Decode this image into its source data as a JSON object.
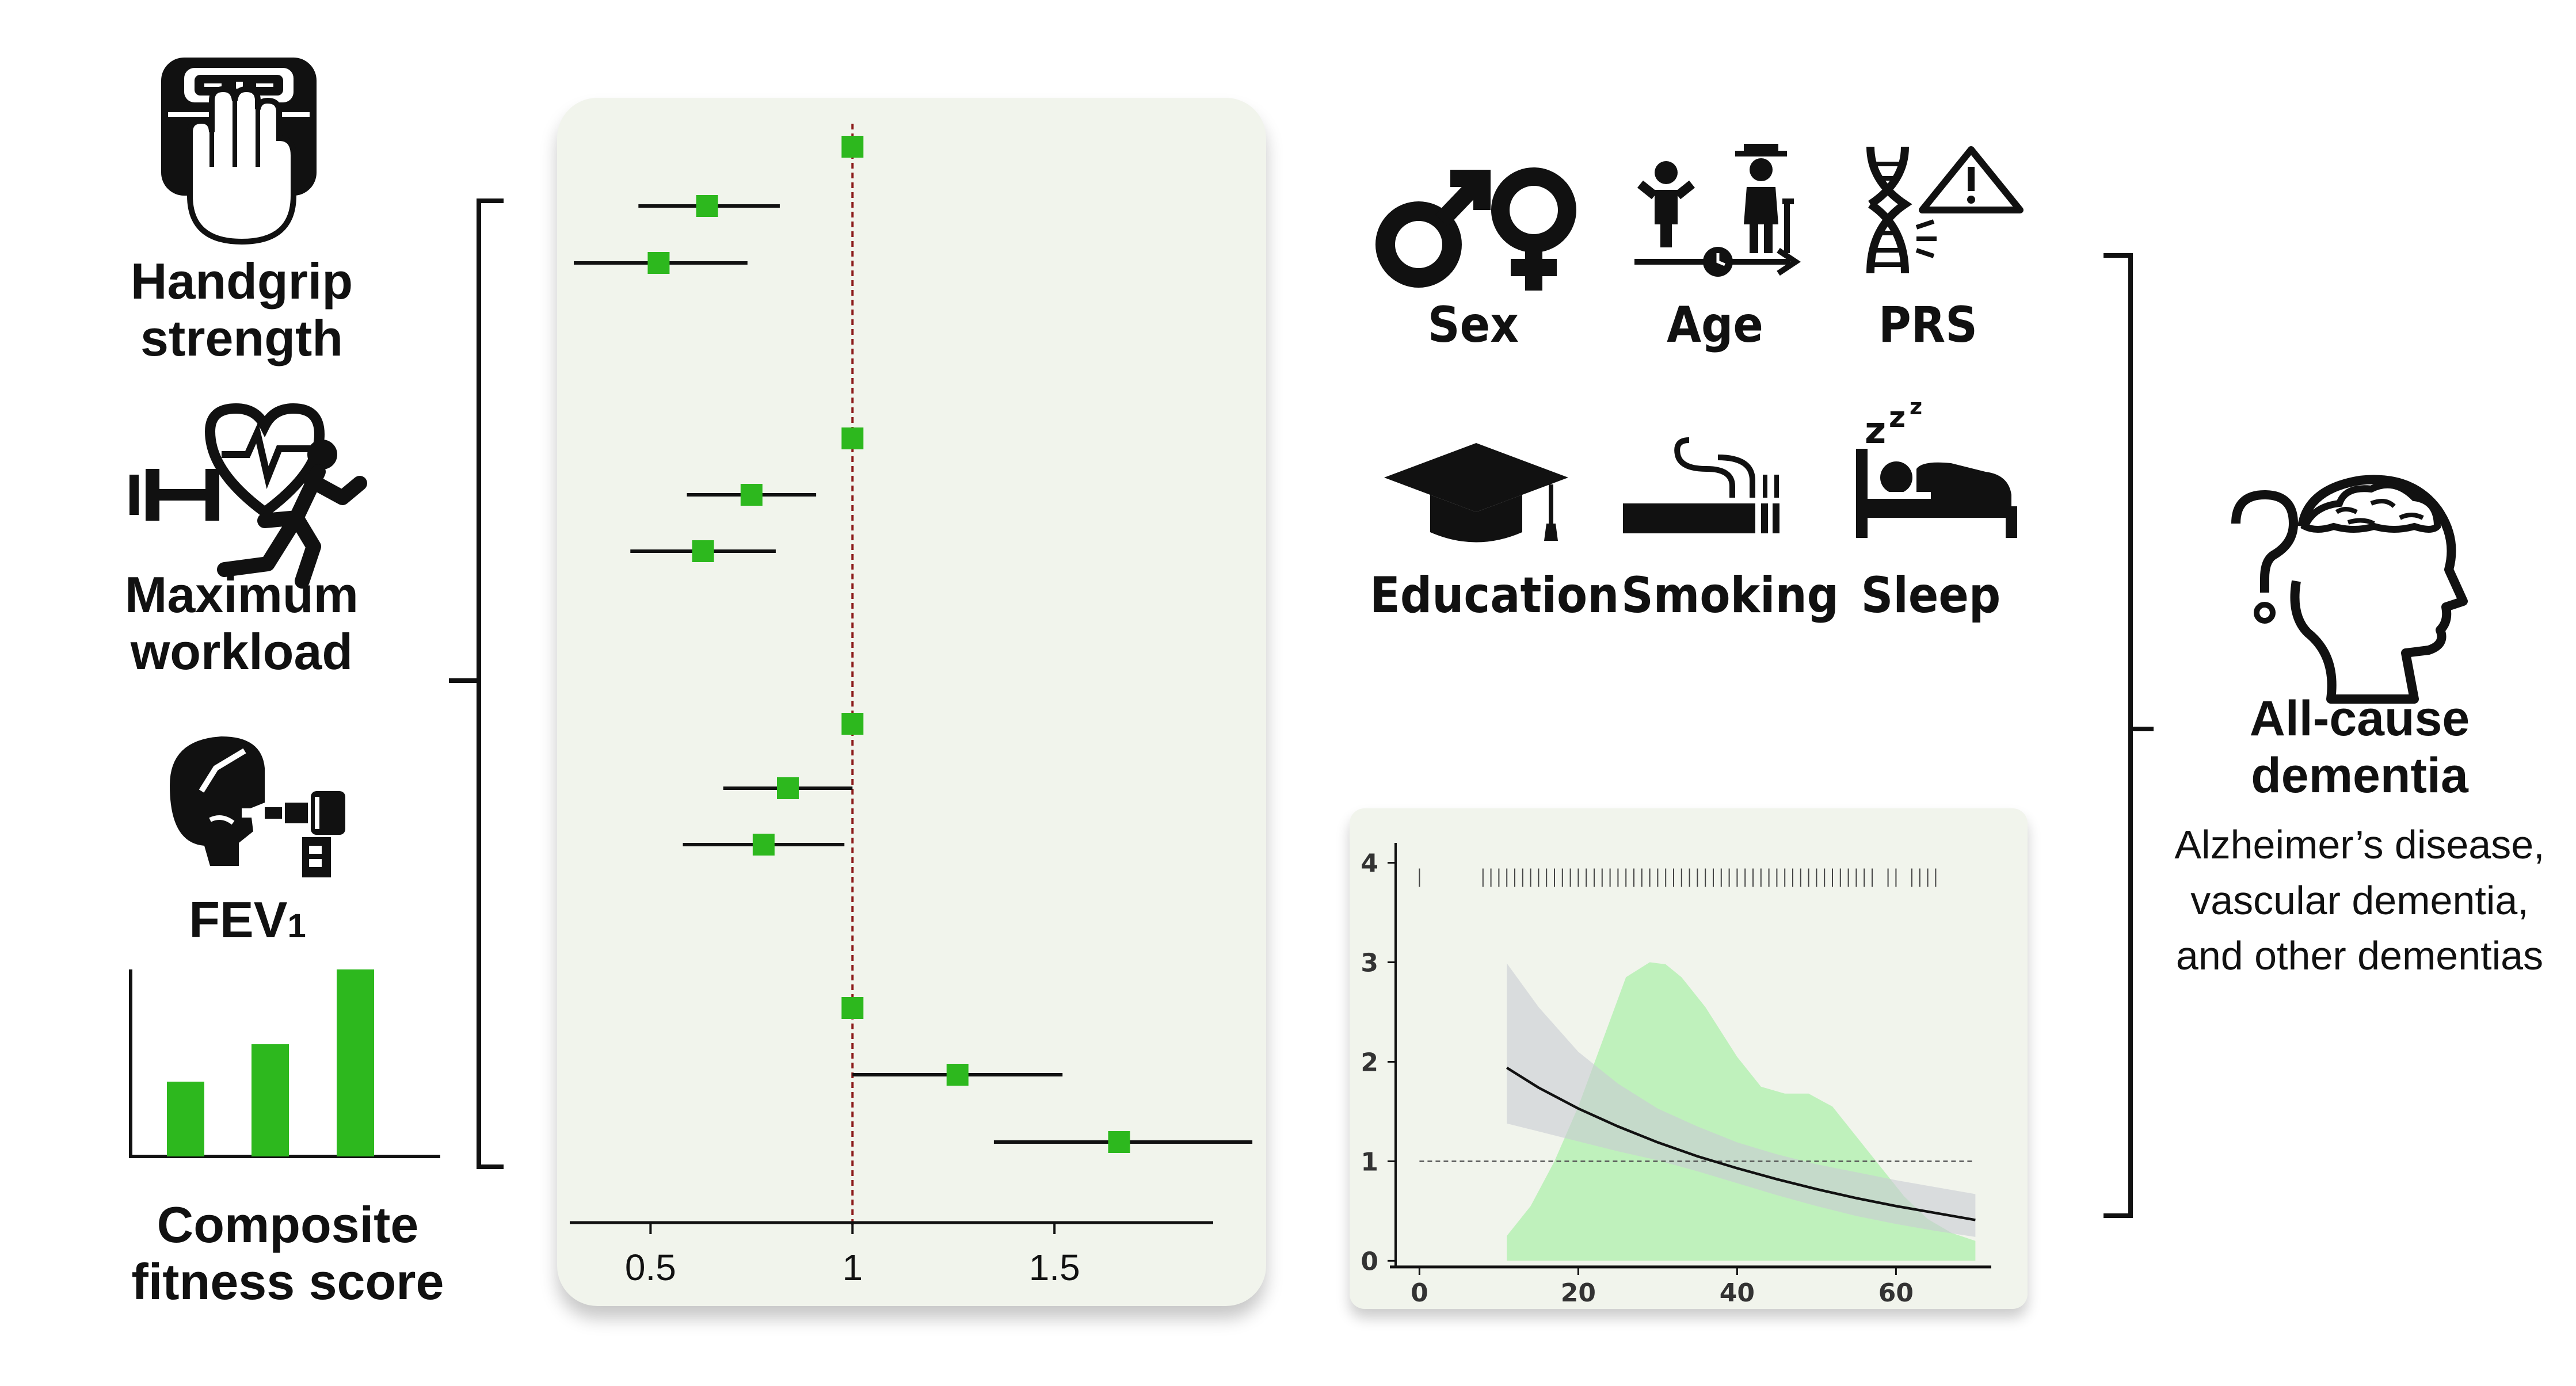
{
  "left_panel": {
    "handgrip_label": "Handgrip\nstrength",
    "workload_label": "Maximum\nworkload",
    "fev_label": "FEV",
    "fev_subscript": "1",
    "composite_label": "Composite\nfitness score",
    "composite_bars": [
      0.4,
      0.6,
      1.0
    ]
  },
  "forest_plot": {
    "x_ticks": [
      "0.5",
      "1",
      "1.5"
    ],
    "x_range": [
      0.3,
      1.95
    ],
    "reference_line": 1,
    "rows": [
      {
        "est": 1.0,
        "lo": 1.0,
        "hi": 1.0
      },
      {
        "est": 0.64,
        "lo": 0.47,
        "hi": 0.82
      },
      {
        "est": 0.52,
        "lo": 0.31,
        "hi": 0.74
      },
      {
        "est": 1.0,
        "lo": 1.0,
        "hi": 1.0
      },
      {
        "est": 0.75,
        "lo": 0.59,
        "hi": 0.91
      },
      {
        "est": 0.63,
        "lo": 0.45,
        "hi": 0.81
      },
      {
        "est": 1.0,
        "lo": 1.0,
        "hi": 1.0
      },
      {
        "est": 0.84,
        "lo": 0.68,
        "hi": 1.0
      },
      {
        "est": 0.78,
        "lo": 0.58,
        "hi": 0.98
      },
      {
        "est": 1.0,
        "lo": 1.0,
        "hi": 1.0
      },
      {
        "est": 1.26,
        "lo": 1.0,
        "hi": 1.52
      },
      {
        "est": 1.66,
        "lo": 1.35,
        "hi": 1.99
      }
    ],
    "marker_color": "#2db81e",
    "reference_color": "#8b1a1a"
  },
  "covariates": [
    {
      "label": "Sex",
      "icon": "sex-icon"
    },
    {
      "label": "Age",
      "icon": "age-icon"
    },
    {
      "label": "PRS",
      "icon": "dna-warning-icon"
    },
    {
      "label": "Education",
      "icon": "graduation-cap-icon"
    },
    {
      "label": "Smoking",
      "icon": "cigarette-icon"
    },
    {
      "label": "Sleep",
      "icon": "sleep-icon"
    }
  ],
  "outcome": {
    "title": "All-cause\ndementia",
    "subtypes": "Alzheimer’s disease,\nvascular dementia,\nand other dementias",
    "icon": "head-question-icon"
  },
  "chart_data": {
    "type": "line",
    "x_ticks": [
      "0",
      "20",
      "40",
      "60"
    ],
    "y_ticks": [
      "0",
      "1",
      "2",
      "3",
      "4"
    ],
    "xlim": [
      -3,
      72
    ],
    "ylim": [
      -0.05,
      4.2
    ],
    "reference_y": 1,
    "curve": {
      "x": [
        11,
        15,
        20,
        25,
        30,
        35,
        40,
        45,
        50,
        55,
        60,
        65,
        70
      ],
      "y": [
        1.94,
        1.74,
        1.53,
        1.35,
        1.19,
        1.05,
        0.93,
        0.82,
        0.72,
        0.63,
        0.55,
        0.48,
        0.41
      ],
      "ci_low": [
        1.38,
        1.3,
        1.2,
        1.1,
        1.01,
        0.9,
        0.78,
        0.66,
        0.55,
        0.45,
        0.37,
        0.3,
        0.24
      ],
      "ci_high": [
        2.99,
        2.55,
        2.1,
        1.78,
        1.53,
        1.35,
        1.19,
        1.07,
        0.97,
        0.89,
        0.81,
        0.74,
        0.67
      ]
    },
    "density": {
      "x": [
        11,
        14,
        17,
        20,
        23,
        26,
        29,
        31,
        33,
        36,
        40,
        43,
        46,
        49,
        52,
        55,
        58,
        61,
        64,
        67,
        70
      ],
      "y": [
        0.25,
        0.55,
        1.0,
        1.55,
        2.2,
        2.85,
        3.0,
        2.98,
        2.85,
        2.55,
        2.05,
        1.75,
        1.68,
        1.68,
        1.55,
        1.25,
        0.95,
        0.65,
        0.42,
        0.28,
        0.2
      ]
    },
    "rug_x": [
      0,
      8,
      9,
      10,
      11,
      12,
      13,
      14,
      15,
      16,
      17,
      18,
      19,
      20,
      21,
      22,
      23,
      24,
      25,
      26,
      27,
      28,
      29,
      30,
      31,
      32,
      33,
      34,
      35,
      36,
      37,
      38,
      39,
      40,
      41,
      42,
      43,
      44,
      45,
      46,
      47,
      48,
      49,
      50,
      51,
      52,
      53,
      54,
      55,
      56,
      57,
      59,
      60,
      62,
      63,
      64,
      65
    ],
    "colors": {
      "ci": "#c9ccd3",
      "density": "#b6f0b4",
      "curve": "#111111"
    }
  }
}
